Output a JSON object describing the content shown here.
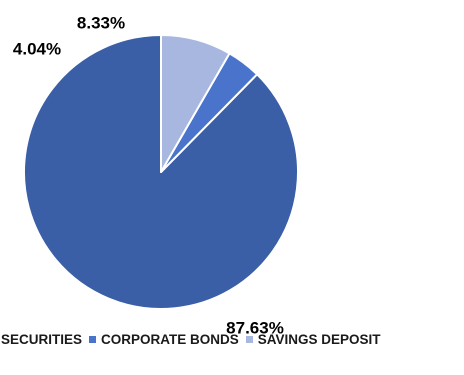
{
  "chart_data": {
    "type": "pie",
    "title": "",
    "slices": [
      {
        "name": "SECURITIES",
        "value": 87.63,
        "label": "87.63%",
        "color": "#3A5FA6"
      },
      {
        "name": "CORPORATE BONDS",
        "value": 4.04,
        "label": "4.04%",
        "color": "#4A74CC"
      },
      {
        "name": "SAVINGS DEPOSIT",
        "value": 8.33,
        "label": "8.33%",
        "color": "#A7B7DF"
      }
    ],
    "start_angle_deg": 0,
    "direction": "counterclockwise-from-top",
    "legend": {
      "placement": "bottom",
      "items": [
        {
          "label": "SECURITIES",
          "color": "#3A5FA6",
          "swatch_visible": false
        },
        {
          "label": "CORPORATE BONDS",
          "color": "#4A74CC",
          "swatch_visible": true
        },
        {
          "label": "SAVINGS DEPOSIT",
          "color": "#A7B7DF",
          "swatch_visible": true
        }
      ]
    }
  }
}
